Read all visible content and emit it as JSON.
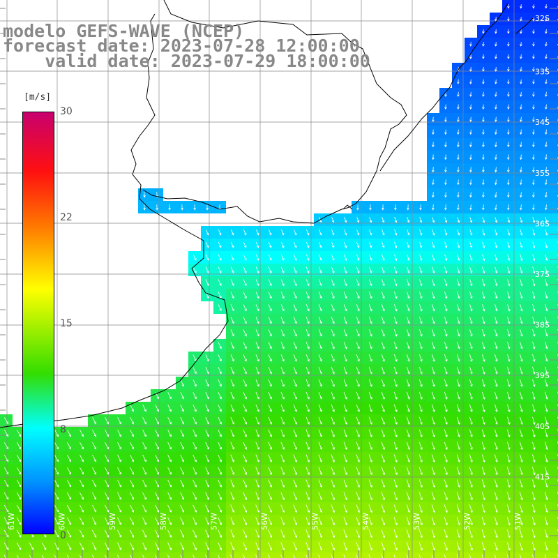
{
  "title": {
    "line1": "modelo GEFS-WAVE (NCEP)",
    "line2": "forecast date: 2023-07-28 12:00:00",
    "line3": "    valid date: 2023-07-29 18:00:00"
  },
  "colorbar": {
    "unit": "[m/s]",
    "ticks": [
      "30",
      "22",
      "15",
      "8",
      "0"
    ],
    "colors": [
      "#0000ff",
      "#0090ff",
      "#00ffff",
      "#33dd00",
      "#ffff00",
      "#ff7800",
      "#ff1010",
      "#c8006e"
    ]
  },
  "lat_labels": [
    "32S",
    "33S",
    "34S",
    "35S",
    "36S",
    "37S",
    "38S",
    "39S",
    "40S",
    "41S"
  ],
  "lon_labels": [
    "61W",
    "60W",
    "59W",
    "58W",
    "57W",
    "56W",
    "55W",
    "54W",
    "53W",
    "52W",
    "51W"
  ]
}
